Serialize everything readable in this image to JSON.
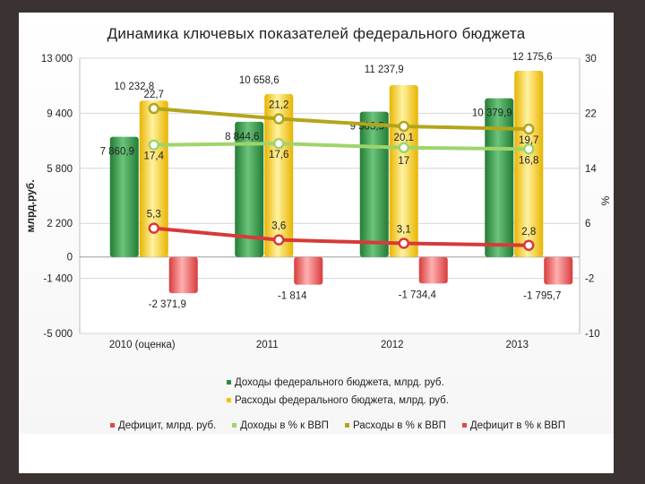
{
  "chart_data": {
    "type": "bar",
    "title": "Динамика ключевых показателей федерального бюджета",
    "ylabel": "млрд.руб.",
    "y2label": "%",
    "categories": [
      "2010 (оценка)",
      "2011",
      "2012",
      "2013"
    ],
    "ylim": [
      -5000,
      13000
    ],
    "yticks": [
      "13 000",
      "9 400",
      "5 800",
      "2 200",
      "0",
      "-1 400",
      "-5 000"
    ],
    "ytick_values": [
      13000,
      9400,
      5800,
      2200,
      0,
      -1400,
      -5000
    ],
    "y2lim": [
      -10,
      30
    ],
    "y2ticks": [
      "30",
      "22",
      "14",
      "6",
      "-2",
      "-10"
    ],
    "y2tick_values": [
      30,
      22,
      14,
      6,
      -2,
      -10
    ],
    "grid": true,
    "legend_position": "bottom",
    "series": [
      {
        "name": "Доходы федерального бюджета, млрд. руб.",
        "kind": "bar",
        "axis": "left",
        "color": "#3a9a4c",
        "values": [
          7860.9,
          8844.6,
          9503.5,
          10379.9
        ],
        "labels": [
          "7 860,9",
          "8 844,6",
          "9 503,5",
          "10 379,9"
        ]
      },
      {
        "name": "Расходы федерального бюджета, млрд. руб.",
        "kind": "bar",
        "axis": "left",
        "color": "#f3c61c",
        "values": [
          10232.8,
          10658.6,
          11237.9,
          12175.6
        ],
        "labels": [
          "10 232,8",
          "10 658,6",
          "11 237,9",
          "12 175,6"
        ]
      },
      {
        "name": "Дефицит, млрд. руб.",
        "kind": "bar",
        "axis": "left",
        "color": "#e05050",
        "values": [
          -2371.9,
          -1814,
          -1734.4,
          -1795.7
        ],
        "labels": [
          "-2 371,9",
          "-1 814",
          "-1 734,4",
          "-1 795,7"
        ]
      },
      {
        "name": "Доходы в % к ВВП",
        "kind": "line",
        "axis": "right",
        "color": "#9fd46a",
        "values": [
          17.4,
          17.6,
          17,
          16.8
        ],
        "labels": [
          "17,4",
          "17,6",
          "17",
          "16,8"
        ]
      },
      {
        "name": "Расходы в % к ВВП",
        "kind": "line",
        "axis": "right",
        "color": "#b3a51a",
        "values": [
          22.7,
          21.2,
          20.1,
          19.7
        ],
        "labels": [
          "22,7",
          "21,2",
          "20,1",
          "19,7"
        ]
      },
      {
        "name": "Дефицит в % к ВВП",
        "kind": "line",
        "axis": "right",
        "color": "#d63a3a",
        "values": [
          5.3,
          3.6,
          3.1,
          2.8
        ],
        "labels": [
          "5,3",
          "3,6",
          "3,1",
          "2,8"
        ]
      }
    ]
  }
}
